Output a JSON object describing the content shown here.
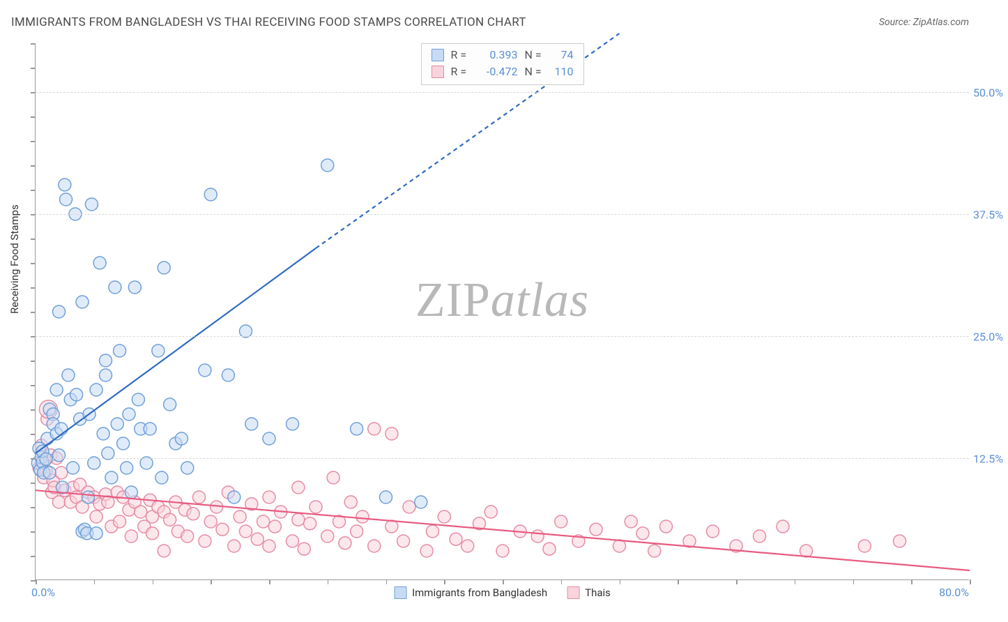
{
  "title": "IMMIGRANTS FROM BANGLADESH VS THAI RECEIVING FOOD STAMPS CORRELATION CHART",
  "source": "Source: ZipAtlas.com",
  "watermark": {
    "left": "ZIP",
    "right": "atlas"
  },
  "y_axis_label": "Receiving Food Stamps",
  "chart": {
    "type": "scatter",
    "xlim": [
      0,
      80
    ],
    "ylim": [
      0,
      55
    ],
    "x_ticks_minor": [
      0,
      5,
      10,
      15,
      20,
      25,
      30,
      35,
      40,
      45,
      50,
      55,
      60,
      65,
      70,
      75,
      80
    ],
    "y_ticks_minor": [
      0,
      2.5,
      5,
      7.5,
      10,
      12.5,
      15,
      17.5,
      20,
      22.5,
      25,
      27.5,
      30,
      32.5,
      35,
      37.5,
      40,
      42.5,
      45,
      47.5,
      50,
      52.5,
      55
    ],
    "x_tick_labels": {
      "min": "0.0%",
      "max": "80.0%"
    },
    "y_grid": [
      {
        "y": 12.5,
        "label": "12.5%"
      },
      {
        "y": 25.0,
        "label": "25.0%"
      },
      {
        "y": 37.5,
        "label": "37.5%"
      },
      {
        "y": 50.0,
        "label": "50.0%"
      }
    ],
    "series": [
      {
        "name": "Immigrants from Bangladesh",
        "fill": "#c7dbf4",
        "stroke": "#6f9fd8",
        "fill_opacity": 0.55,
        "marker_r": 9,
        "trend": {
          "color": "#2e6bc0",
          "width": 2.2,
          "solid": {
            "x1": 0,
            "y1": 13.0,
            "x2": 24,
            "y2": 34.0
          },
          "dashed": {
            "x1": 24,
            "y1": 34.0,
            "x2": 50,
            "y2": 56.0
          }
        },
        "stats": {
          "R": "0.393",
          "N": "74"
        },
        "points": [
          [
            0.2,
            12.0
          ],
          [
            0.3,
            13.5
          ],
          [
            0.4,
            11.3
          ],
          [
            0.5,
            12.6
          ],
          [
            0.6,
            12.1
          ],
          [
            0.6,
            13.2
          ],
          [
            0.7,
            11.0
          ],
          [
            0.9,
            12.4
          ],
          [
            1.0,
            14.5
          ],
          [
            1.2,
            11.0
          ],
          [
            1.2,
            17.5
          ],
          [
            1.5,
            17.0
          ],
          [
            1.5,
            16.0
          ],
          [
            1.8,
            15.0
          ],
          [
            1.8,
            19.5
          ],
          [
            2.0,
            12.8
          ],
          [
            2.0,
            27.5
          ],
          [
            2.2,
            15.5
          ],
          [
            2.3,
            9.5
          ],
          [
            2.5,
            40.5
          ],
          [
            2.6,
            39.0
          ],
          [
            2.8,
            21.0
          ],
          [
            3.0,
            18.5
          ],
          [
            3.2,
            11.5
          ],
          [
            3.4,
            37.5
          ],
          [
            3.5,
            19.0
          ],
          [
            3.8,
            16.5
          ],
          [
            4.0,
            28.5
          ],
          [
            4.0,
            5.0
          ],
          [
            4.2,
            5.2
          ],
          [
            4.4,
            4.8
          ],
          [
            4.5,
            8.5
          ],
          [
            4.6,
            17.0
          ],
          [
            4.8,
            38.5
          ],
          [
            5.0,
            12.0
          ],
          [
            5.2,
            4.8
          ],
          [
            5.2,
            19.5
          ],
          [
            5.5,
            32.5
          ],
          [
            5.8,
            15.0
          ],
          [
            6.0,
            22.5
          ],
          [
            6.0,
            21.0
          ],
          [
            6.2,
            13.0
          ],
          [
            6.5,
            10.5
          ],
          [
            6.8,
            30.0
          ],
          [
            7.0,
            16.0
          ],
          [
            7.2,
            23.5
          ],
          [
            7.5,
            14.0
          ],
          [
            7.8,
            11.5
          ],
          [
            8.0,
            17.0
          ],
          [
            8.2,
            9.0
          ],
          [
            8.5,
            30.0
          ],
          [
            8.8,
            18.5
          ],
          [
            9.0,
            15.5
          ],
          [
            9.5,
            12.0
          ],
          [
            9.8,
            15.5
          ],
          [
            10.5,
            23.5
          ],
          [
            10.8,
            10.5
          ],
          [
            11.0,
            32.0
          ],
          [
            11.5,
            18.0
          ],
          [
            12.0,
            14.0
          ],
          [
            12.5,
            14.5
          ],
          [
            13.0,
            11.5
          ],
          [
            14.5,
            21.5
          ],
          [
            15.0,
            39.5
          ],
          [
            16.5,
            21.0
          ],
          [
            17.0,
            8.5
          ],
          [
            18.0,
            25.5
          ],
          [
            18.5,
            16.0
          ],
          [
            20.0,
            14.5
          ],
          [
            22.0,
            16.0
          ],
          [
            25.0,
            42.5
          ],
          [
            27.5,
            15.5
          ],
          [
            30.0,
            8.5
          ],
          [
            33.0,
            8.0
          ]
        ]
      },
      {
        "name": "Thais",
        "fill": "#f9d4dd",
        "stroke": "#e58ca4",
        "fill_opacity": 0.55,
        "marker_r": 9,
        "trend": {
          "color": "#e85a7e",
          "width": 2.2,
          "solid": {
            "x1": 0,
            "y1": 9.2,
            "x2": 80,
            "y2": 1.0
          },
          "dashed": null
        },
        "stats": {
          "R": "-0.472",
          "N": "110"
        },
        "points": [
          [
            0.3,
            11.5
          ],
          [
            0.5,
            12.0
          ],
          [
            0.5,
            13.8
          ],
          [
            0.7,
            10.5
          ],
          [
            0.8,
            12.4
          ],
          [
            0.9,
            11.2
          ],
          [
            1.0,
            16.5
          ],
          [
            1.1,
            17.5,
            13
          ],
          [
            1.3,
            12.8
          ],
          [
            1.4,
            9.0
          ],
          [
            1.5,
            10.2
          ],
          [
            1.6,
            9.5
          ],
          [
            1.8,
            12.5
          ],
          [
            2.0,
            8.0
          ],
          [
            2.2,
            11.0
          ],
          [
            2.5,
            9.2
          ],
          [
            3.0,
            8.0
          ],
          [
            3.2,
            9.5
          ],
          [
            3.5,
            8.5
          ],
          [
            3.8,
            9.8
          ],
          [
            4.0,
            7.5
          ],
          [
            4.5,
            9.0
          ],
          [
            5.0,
            8.5
          ],
          [
            5.2,
            6.5
          ],
          [
            5.5,
            7.8
          ],
          [
            6.0,
            8.8
          ],
          [
            6.2,
            8.0
          ],
          [
            6.5,
            5.5
          ],
          [
            7.0,
            9.0
          ],
          [
            7.2,
            6.0
          ],
          [
            7.5,
            8.5
          ],
          [
            8.0,
            7.2
          ],
          [
            8.2,
            4.5
          ],
          [
            8.5,
            8.0
          ],
          [
            9.0,
            7.0
          ],
          [
            9.3,
            5.5
          ],
          [
            9.8,
            8.2
          ],
          [
            10.0,
            6.5
          ],
          [
            10.0,
            4.8
          ],
          [
            10.5,
            7.5
          ],
          [
            11.0,
            3.0
          ],
          [
            11.0,
            7.0
          ],
          [
            11.5,
            6.2
          ],
          [
            12.0,
            8.0
          ],
          [
            12.2,
            5.0
          ],
          [
            12.8,
            7.2
          ],
          [
            13.0,
            4.5
          ],
          [
            13.5,
            6.8
          ],
          [
            14.0,
            8.5
          ],
          [
            14.5,
            4.0
          ],
          [
            15.0,
            6.0
          ],
          [
            15.5,
            7.5
          ],
          [
            16.0,
            5.2
          ],
          [
            16.5,
            9.0
          ],
          [
            17.0,
            3.5
          ],
          [
            17.5,
            6.5
          ],
          [
            18.0,
            5.0
          ],
          [
            18.5,
            7.8
          ],
          [
            19.0,
            4.2
          ],
          [
            19.5,
            6.0
          ],
          [
            20.0,
            8.5
          ],
          [
            20.0,
            3.5
          ],
          [
            20.5,
            5.5
          ],
          [
            21.0,
            7.0
          ],
          [
            22.0,
            4.0
          ],
          [
            22.5,
            6.2
          ],
          [
            22.5,
            9.5
          ],
          [
            23.0,
            3.2
          ],
          [
            23.5,
            5.8
          ],
          [
            24.0,
            7.5
          ],
          [
            25.0,
            4.5
          ],
          [
            25.5,
            10.5
          ],
          [
            26.0,
            6.0
          ],
          [
            26.5,
            3.8
          ],
          [
            27.0,
            8.0
          ],
          [
            27.5,
            5.0
          ],
          [
            28.0,
            6.5
          ],
          [
            29.0,
            15.5
          ],
          [
            29.0,
            3.5
          ],
          [
            30.5,
            15.0
          ],
          [
            30.5,
            5.5
          ],
          [
            31.5,
            4.0
          ],
          [
            32.0,
            7.5
          ],
          [
            33.5,
            3.0
          ],
          [
            34.0,
            5.0
          ],
          [
            35.0,
            6.5
          ],
          [
            36.0,
            4.2
          ],
          [
            37.0,
            3.5
          ],
          [
            38.0,
            5.8
          ],
          [
            39.0,
            7.0
          ],
          [
            40.0,
            3.0
          ],
          [
            41.5,
            5.0
          ],
          [
            43.0,
            4.5
          ],
          [
            44.0,
            3.2
          ],
          [
            45.0,
            6.0
          ],
          [
            46.5,
            4.0
          ],
          [
            48.0,
            5.2
          ],
          [
            50.0,
            3.5
          ],
          [
            51.0,
            6.0
          ],
          [
            52.0,
            4.8
          ],
          [
            53.0,
            3.0
          ],
          [
            54.0,
            5.5
          ],
          [
            56.0,
            4.0
          ],
          [
            58.0,
            5.0
          ],
          [
            60.0,
            3.5
          ],
          [
            62.0,
            4.5
          ],
          [
            64.0,
            5.5
          ],
          [
            66.0,
            3.0
          ],
          [
            71.0,
            3.5
          ],
          [
            74.0,
            4.0
          ]
        ]
      }
    ]
  },
  "stats_labels": {
    "R": "R =",
    "N": "N ="
  }
}
